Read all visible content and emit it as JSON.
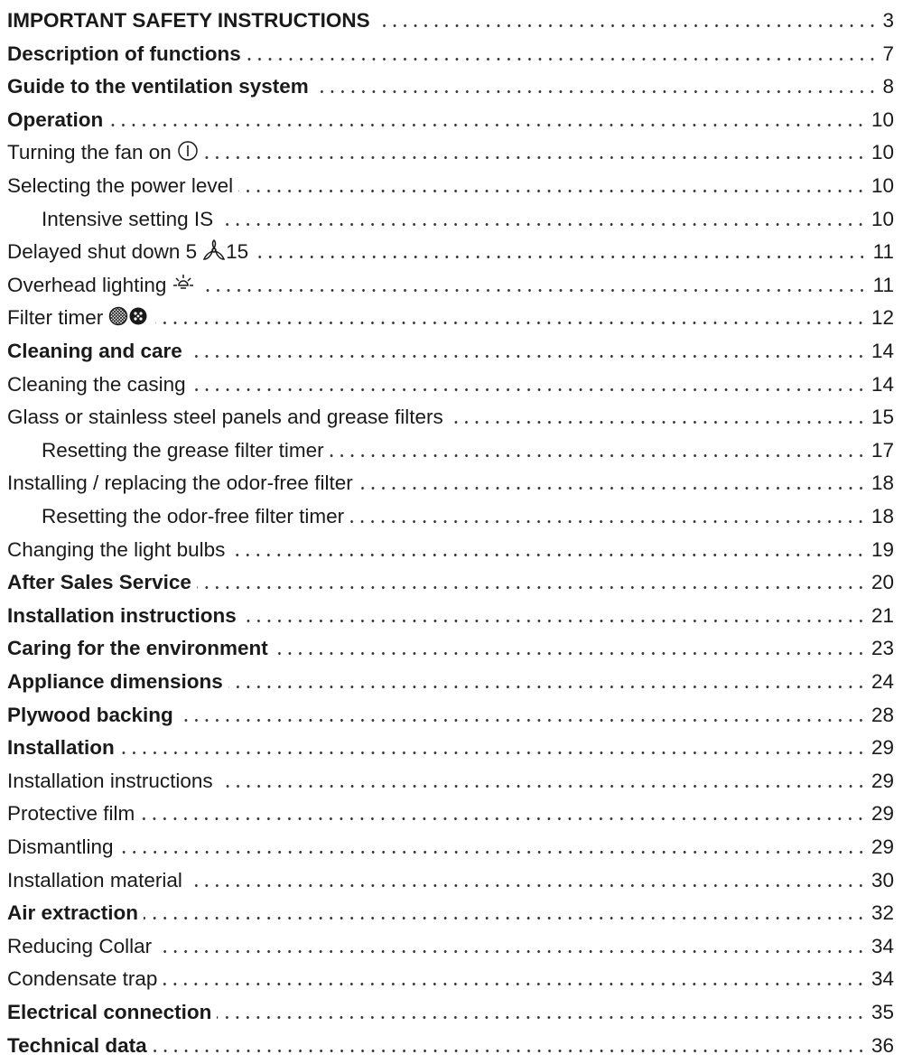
{
  "toc": [
    {
      "title": "IMPORTANT SAFETY INSTRUCTIONS",
      "page": "3",
      "level": 1,
      "bold": true
    },
    {
      "title": "Description of functions",
      "page": "7",
      "level": 1,
      "bold": true
    },
    {
      "title": "Guide to the ventilation system",
      "page": "8",
      "level": 1,
      "bold": true
    },
    {
      "title": "Operation",
      "page": "10",
      "level": 1,
      "bold": true
    },
    {
      "title": "Turning the fan on",
      "page": "10",
      "level": 1,
      "bold": false,
      "icon": "power-on-icon"
    },
    {
      "title": "Selecting the power level",
      "page": "10",
      "level": 1,
      "bold": false
    },
    {
      "title": "Intensive setting IS",
      "page": "10",
      "level": 2,
      "bold": false
    },
    {
      "title": "Delayed shut down 5",
      "suffix": "15",
      "page": "11",
      "level": 1,
      "bold": false,
      "icon": "fan-icon"
    },
    {
      "title": "Overhead lighting",
      "page": "11",
      "level": 1,
      "bold": false,
      "icon": "light-icon"
    },
    {
      "title": "Filter timer",
      "page": "12",
      "level": 1,
      "bold": false,
      "icon": "filter-icon"
    },
    {
      "title": "Cleaning and care",
      "page": "14",
      "level": 1,
      "bold": true
    },
    {
      "title": "Cleaning the casing",
      "page": "14",
      "level": 1,
      "bold": false
    },
    {
      "title": "Glass or stainless steel panels and grease filters",
      "page": "15",
      "level": 1,
      "bold": false
    },
    {
      "title": "Resetting the grease filter timer",
      "page": "17",
      "level": 2,
      "bold": false
    },
    {
      "title": "Installing / replacing the odor-free filter",
      "page": "18",
      "level": 1,
      "bold": false
    },
    {
      "title": "Resetting the odor-free filter timer",
      "page": "18",
      "level": 2,
      "bold": false
    },
    {
      "title": "Changing the light bulbs",
      "page": "19",
      "level": 1,
      "bold": false
    },
    {
      "title": "After Sales Service",
      "page": "20",
      "level": 1,
      "bold": true
    },
    {
      "title": "Installation instructions",
      "page": "21",
      "level": 1,
      "bold": true
    },
    {
      "title": "Caring for the environment",
      "page": "23",
      "level": 1,
      "bold": true
    },
    {
      "title": "Appliance dimensions",
      "page": "24",
      "level": 1,
      "bold": true
    },
    {
      "title": "Plywood backing",
      "page": "28",
      "level": 1,
      "bold": true
    },
    {
      "title": "Installation",
      "page": "29",
      "level": 1,
      "bold": true
    },
    {
      "title": "Installation instructions",
      "page": "29",
      "level": 1,
      "bold": false
    },
    {
      "title": "Protective film",
      "page": "29",
      "level": 1,
      "bold": false
    },
    {
      "title": "Dismantling",
      "page": "29",
      "level": 1,
      "bold": false
    },
    {
      "title": "Installation material",
      "page": "30",
      "level": 1,
      "bold": false
    },
    {
      "title": "Air extraction",
      "page": "32",
      "level": 1,
      "bold": true
    },
    {
      "title": "Reducing Collar",
      "page": "34",
      "level": 1,
      "bold": false
    },
    {
      "title": "Condensate trap",
      "page": "34",
      "level": 1,
      "bold": false
    },
    {
      "title": "Electrical connection",
      "page": "35",
      "level": 1,
      "bold": true
    },
    {
      "title": "Technical data",
      "page": "36",
      "level": 1,
      "bold": true
    }
  ]
}
